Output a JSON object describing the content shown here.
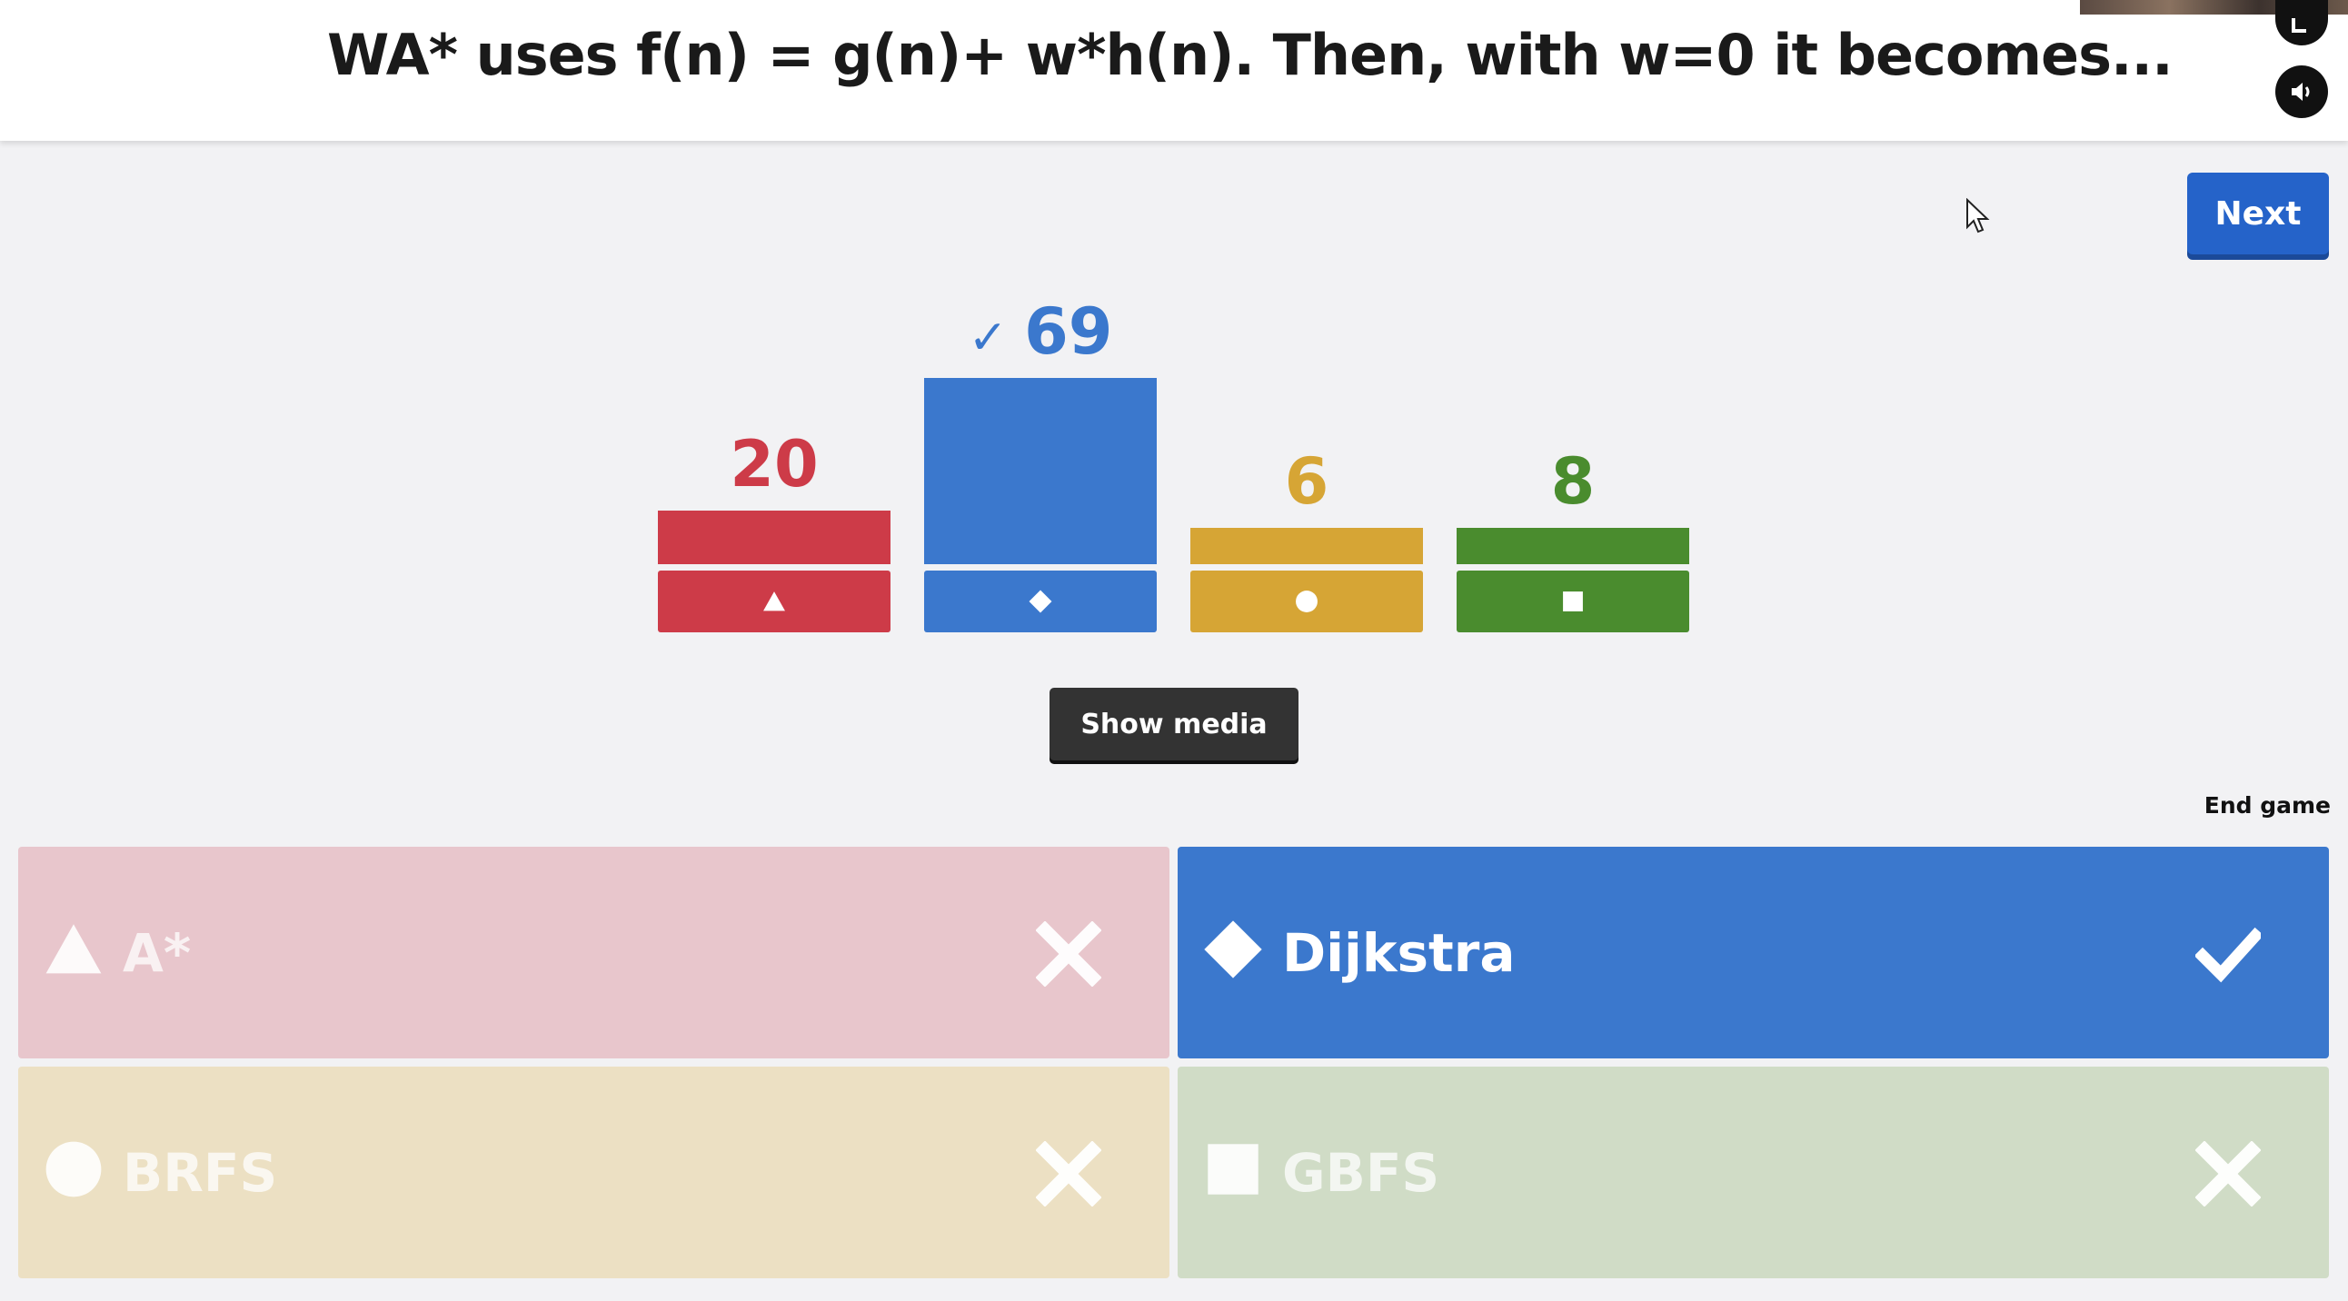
{
  "header": {
    "question": "WA* uses f(n) = g(n)+ w*h(n). Then, with w=0 it becomes..."
  },
  "controls": {
    "next_label": "Next",
    "show_media_label": "Show media",
    "end_game_label": "End game"
  },
  "chart_data": {
    "type": "bar",
    "categories": [
      "triangle",
      "diamond",
      "circle",
      "square"
    ],
    "values": [
      20,
      69,
      6,
      8
    ],
    "colors": [
      "#cd3b48",
      "#3b78cd",
      "#d6a535",
      "#4a8c2e"
    ],
    "correct_index": 1
  },
  "answers": [
    {
      "shape": "triangle",
      "label": "A*",
      "correct": false,
      "color": "#e8c6cc"
    },
    {
      "shape": "diamond",
      "label": "Dijkstra",
      "correct": true,
      "color": "#3b78cd"
    },
    {
      "shape": "circle",
      "label": "BRFS",
      "correct": false,
      "color": "#ece0c3"
    },
    {
      "shape": "square",
      "label": "GBFS",
      "correct": false,
      "color": "#d0dcc6"
    }
  ],
  "icons": {
    "check": "check-icon",
    "cross": "cross-icon",
    "sound": "sound-icon",
    "expand": "expand-icon"
  }
}
